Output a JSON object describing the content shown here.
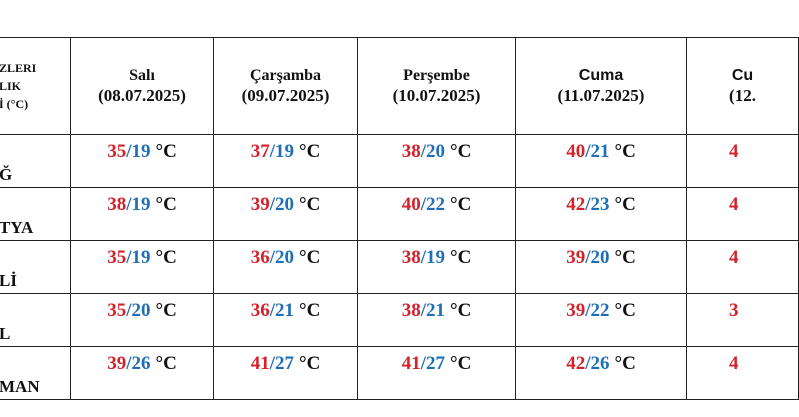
{
  "table": {
    "corner": [
      "ZLERI",
      "LIK",
      "İ (°C)"
    ],
    "separator": "/",
    "unit": "°C",
    "columns": [
      {
        "day": "Salı",
        "date": "(08.07.2025)"
      },
      {
        "day": "Çarşamba",
        "date": "(09.07.2025)"
      },
      {
        "day": "Perşembe",
        "date": "(10.07.2025)"
      },
      {
        "day": "Cuma",
        "date": "(11.07.2025)"
      },
      {
        "day": "Cu",
        "date": "(12."
      }
    ],
    "rows": [
      {
        "label": "Ğ",
        "cells": [
          {
            "high": 35,
            "low": 19
          },
          {
            "high": 37,
            "low": 19
          },
          {
            "high": 38,
            "low": 20
          },
          {
            "high": 40,
            "low": 21
          },
          {
            "partial": "4"
          }
        ]
      },
      {
        "label": "TYA",
        "cells": [
          {
            "high": 38,
            "low": 19
          },
          {
            "high": 39,
            "low": 20
          },
          {
            "high": 40,
            "low": 22
          },
          {
            "high": 42,
            "low": 23
          },
          {
            "partial": "4"
          }
        ]
      },
      {
        "label": "Lİ",
        "cells": [
          {
            "high": 35,
            "low": 19
          },
          {
            "high": 36,
            "low": 20
          },
          {
            "high": 38,
            "low": 19
          },
          {
            "high": 39,
            "low": 20
          },
          {
            "partial": "4"
          }
        ]
      },
      {
        "label": "L",
        "cells": [
          {
            "high": 35,
            "low": 20
          },
          {
            "high": 36,
            "low": 21
          },
          {
            "high": 38,
            "low": 21
          },
          {
            "high": 39,
            "low": 22
          },
          {
            "partial": "3"
          }
        ]
      },
      {
        "label": "MAN",
        "cells": [
          {
            "high": 39,
            "low": 26
          },
          {
            "high": 41,
            "low": 27
          },
          {
            "high": 41,
            "low": 27
          },
          {
            "high": 42,
            "low": 26
          },
          {
            "partial": "4"
          }
        ]
      }
    ]
  }
}
